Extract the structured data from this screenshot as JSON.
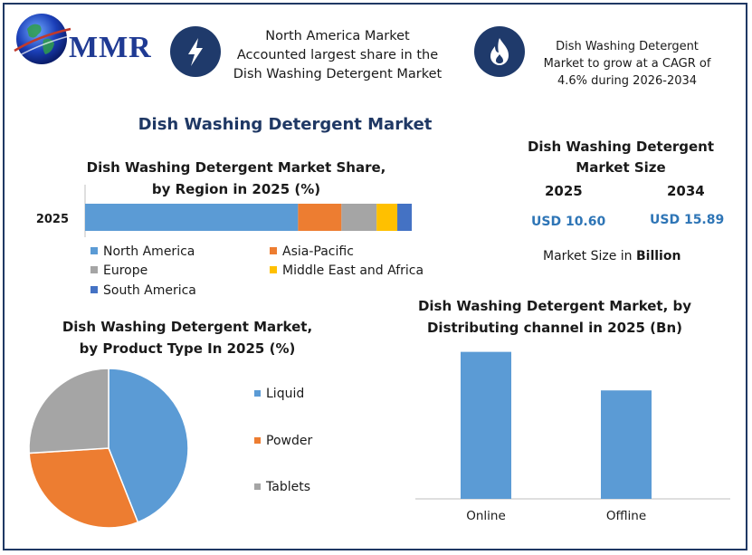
{
  "logo": {
    "text": "MMR"
  },
  "highlights": [
    {
      "icon": "lightning-bolt-icon",
      "text": "North America Market Accounted largest share in the Dish Washing Detergent Market"
    },
    {
      "icon": "flame-icon",
      "text": "Dish Washing Detergent Market to grow at a CAGR of 4.6% during 2026-2034"
    }
  ],
  "main_title": "Dish Washing Detergent Market",
  "market_size": {
    "title": "Dish Washing Detergent Market Size",
    "years": [
      "2025",
      "2034"
    ],
    "values": [
      "USD 10.60",
      "USD 15.89"
    ],
    "unit_prefix": "Market Size in ",
    "unit_bold": "Billion"
  },
  "colors": {
    "north_america": "#5b9bd5",
    "asia_pacific": "#ed7d31",
    "europe": "#a5a5a5",
    "mea": "#ffc000",
    "south_america": "#4472c4",
    "accent": "#1f3864",
    "value_blue": "#2e75b6"
  },
  "chart_data": [
    {
      "type": "bar",
      "orientation": "horizontal-stacked",
      "title": "Dish Washing Detergent Market Share, by Region in 2025 (%)",
      "categories": [
        "2025"
      ],
      "series": [
        {
          "name": "North America",
          "values": [
            51.5
          ]
        },
        {
          "name": "Asia-Pacific",
          "values": [
            10.5
          ]
        },
        {
          "name": "Europe",
          "values": [
            8.5
          ]
        },
        {
          "name": "Middle East and Africa",
          "values": [
            5
          ]
        },
        {
          "name": "South America",
          "values": [
            3.5
          ]
        }
      ],
      "xlim": [
        0,
        100
      ],
      "legend": "bottom"
    },
    {
      "type": "pie",
      "title": "Dish Washing Detergent Market, by Product  Type In 2025 (%)",
      "labels": [
        "Liquid",
        "Powder",
        "Tablets"
      ],
      "values": [
        44,
        30,
        26
      ],
      "colors": [
        "#5b9bd5",
        "#ed7d31",
        "#a5a5a5"
      ],
      "legend": "right"
    },
    {
      "type": "bar",
      "title": "Dish Washing Detergent Market, by Distributing channel in 2025 (Bn)",
      "categories": [
        "Online",
        "Offline"
      ],
      "values": [
        6.1,
        4.5
      ],
      "ylim": [
        0,
        6.8
      ],
      "color": "#5b9bd5"
    }
  ]
}
